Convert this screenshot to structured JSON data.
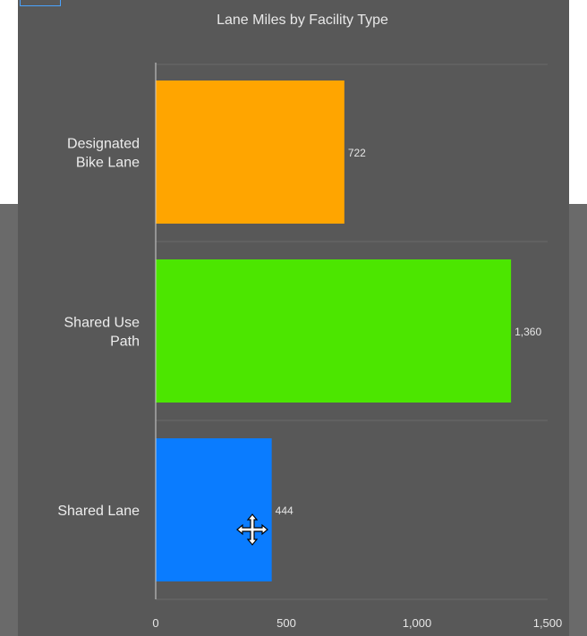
{
  "chart_data": {
    "type": "bar",
    "orientation": "horizontal",
    "title": "Lane Miles by Facility Type",
    "categories": [
      [
        "Designated",
        "Bike Lane"
      ],
      [
        "Shared Use",
        "Path"
      ],
      [
        "Shared Lane"
      ]
    ],
    "values": [
      722,
      1360,
      444
    ],
    "value_labels": [
      "722",
      "1,360",
      "444"
    ],
    "colors": [
      "#ffa500",
      "#4ce600",
      "#0a7cff"
    ],
    "xlim": [
      0,
      1500
    ],
    "xticks": [
      0,
      500,
      1000,
      1500
    ],
    "xtick_labels": [
      "0",
      "500",
      "1,000",
      "1,500"
    ],
    "grid": true
  },
  "cursor": {
    "icon": "move-cursor-icon"
  }
}
